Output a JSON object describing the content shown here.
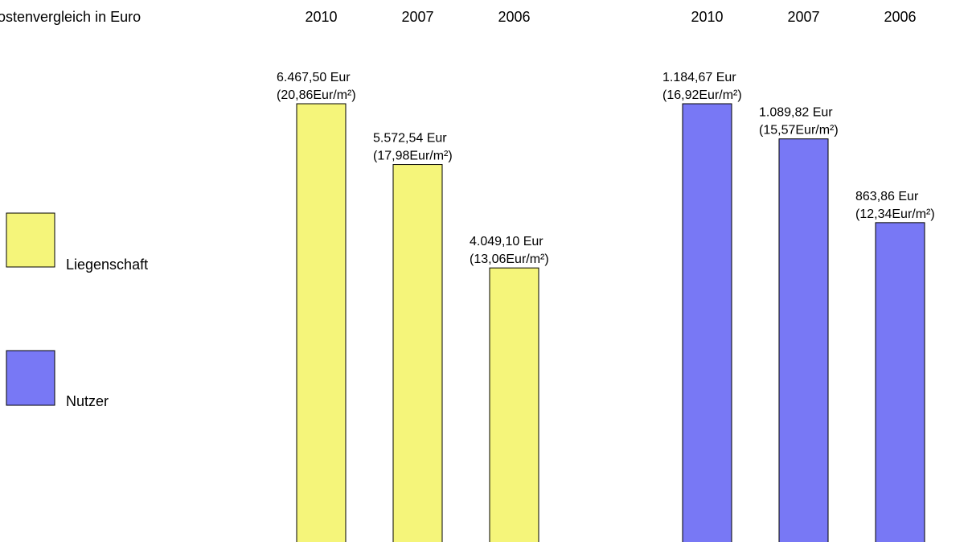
{
  "chart_data": {
    "type": "bar",
    "title": "ostenvergleich in Euro",
    "grid": false,
    "legend_placement": "left",
    "series": [
      {
        "name": "Liegenschaft",
        "color": "#f5f57a",
        "categories": [
          "2010",
          "2007",
          "2006"
        ],
        "values": [
          6467.5,
          5572.54,
          4049.1
        ],
        "labels": [
          {
            "amount": "6.467,50 Eur",
            "per_m2": "(20,86Eur/m²)"
          },
          {
            "amount": "5.572,54 Eur",
            "per_m2": "(17,98Eur/m²)"
          },
          {
            "amount": "4.049,10 Eur",
            "per_m2": "(13,06Eur/m²)"
          }
        ]
      },
      {
        "name": "Nutzer",
        "color": "#7878f5",
        "categories": [
          "2010",
          "2007",
          "2006"
        ],
        "values": [
          1184.67,
          1089.82,
          863.86
        ],
        "labels": [
          {
            "amount": "1.184,67 Eur",
            "per_m2": "(16,92Eur/m²)"
          },
          {
            "amount": "1.089,82 Eur",
            "per_m2": "(15,57Eur/m²)"
          },
          {
            "amount": "863,86 Eur",
            "per_m2": "(12,34Eur/m²)"
          }
        ]
      }
    ]
  }
}
